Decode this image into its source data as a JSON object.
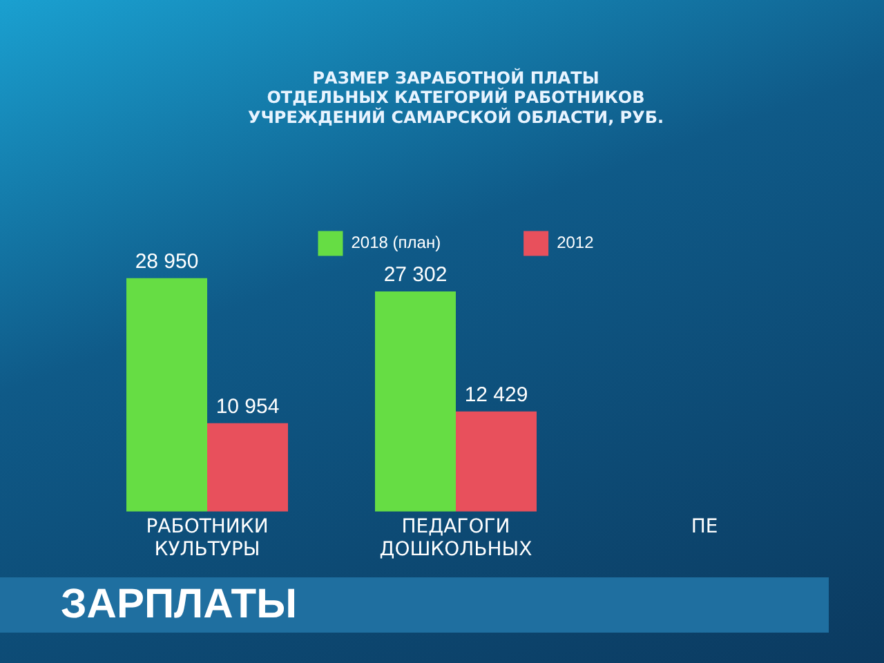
{
  "chart_data": {
    "type": "bar",
    "title": "РАЗМЕР ЗАРАБОТНОЙ ПЛАТЫ\nОТДЕЛЬНЫХ КАТЕГОРИЙ РАБОТНИКОВ\nУЧРЕЖДЕНИЙ САМАРСКОЙ ОБЛАСТИ, РУБ.",
    "categories": [
      "РАБОТНИКИ КУЛЬТУРЫ",
      "ПЕДАГОГИ ДОШКОЛЬНЫХ",
      "ПЕ"
    ],
    "series": [
      {
        "name": "2018 (план)",
        "color": "#66dd44",
        "values": [
          28950,
          27302,
          null
        ],
        "value_labels": [
          "28 950",
          "27 302",
          null
        ]
      },
      {
        "name": "2012",
        "color": "#e8505c",
        "values": [
          10954,
          12429,
          null
        ],
        "value_labels": [
          "10 954",
          "12 429",
          null
        ]
      }
    ],
    "legend": "top",
    "grid": false,
    "annotations": [
      "ЗАРПЛАТЫ"
    ]
  }
}
